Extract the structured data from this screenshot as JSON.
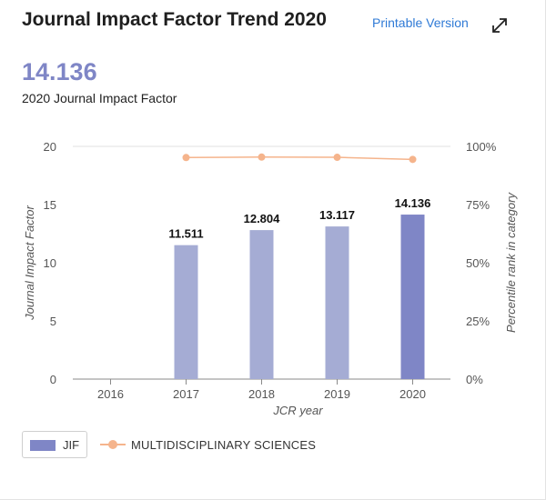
{
  "header": {
    "title": "Journal Impact Factor Trend 2020",
    "printable_label": "Printable Version",
    "expand_icon": "expand-arrows-icon"
  },
  "summary": {
    "value": "14.136",
    "label": "2020 Journal Impact Factor"
  },
  "colors": {
    "bar": "#a5acd4",
    "bar_highlight": "#7f86c6",
    "line": "#f5b48c",
    "axis": "#555555",
    "grid": "#e2e2e2"
  },
  "legend": {
    "jif_label": "JIF",
    "line_label": "MULTIDISCIPLINARY SCIENCES"
  },
  "chart_data": {
    "type": "bar",
    "categories": [
      "2016",
      "2017",
      "2018",
      "2019",
      "2020"
    ],
    "series": [
      {
        "name": "JIF",
        "type": "bar",
        "axis": "left",
        "values": [
          null,
          11.511,
          12.804,
          13.117,
          14.136
        ],
        "labels": [
          "",
          "11.511",
          "12.804",
          "13.117",
          "14.136"
        ]
      },
      {
        "name": "MULTIDISCIPLINARY SCIENCES",
        "type": "line",
        "axis": "right",
        "values": [
          null,
          95.2,
          95.4,
          95.3,
          94.4
        ]
      }
    ],
    "xlabel": "JCR year",
    "ylabel": "Journal Impact Factor",
    "y2label": "Percentile rank in category",
    "ylim": [
      0,
      20
    ],
    "y_ticks": [
      "0",
      "5",
      "10",
      "15",
      "20"
    ],
    "y2lim": [
      0,
      100
    ],
    "y2_ticks": [
      "0%",
      "25%",
      "50%",
      "75%",
      "100%"
    ],
    "highlight_category": "2020",
    "grid": true
  }
}
